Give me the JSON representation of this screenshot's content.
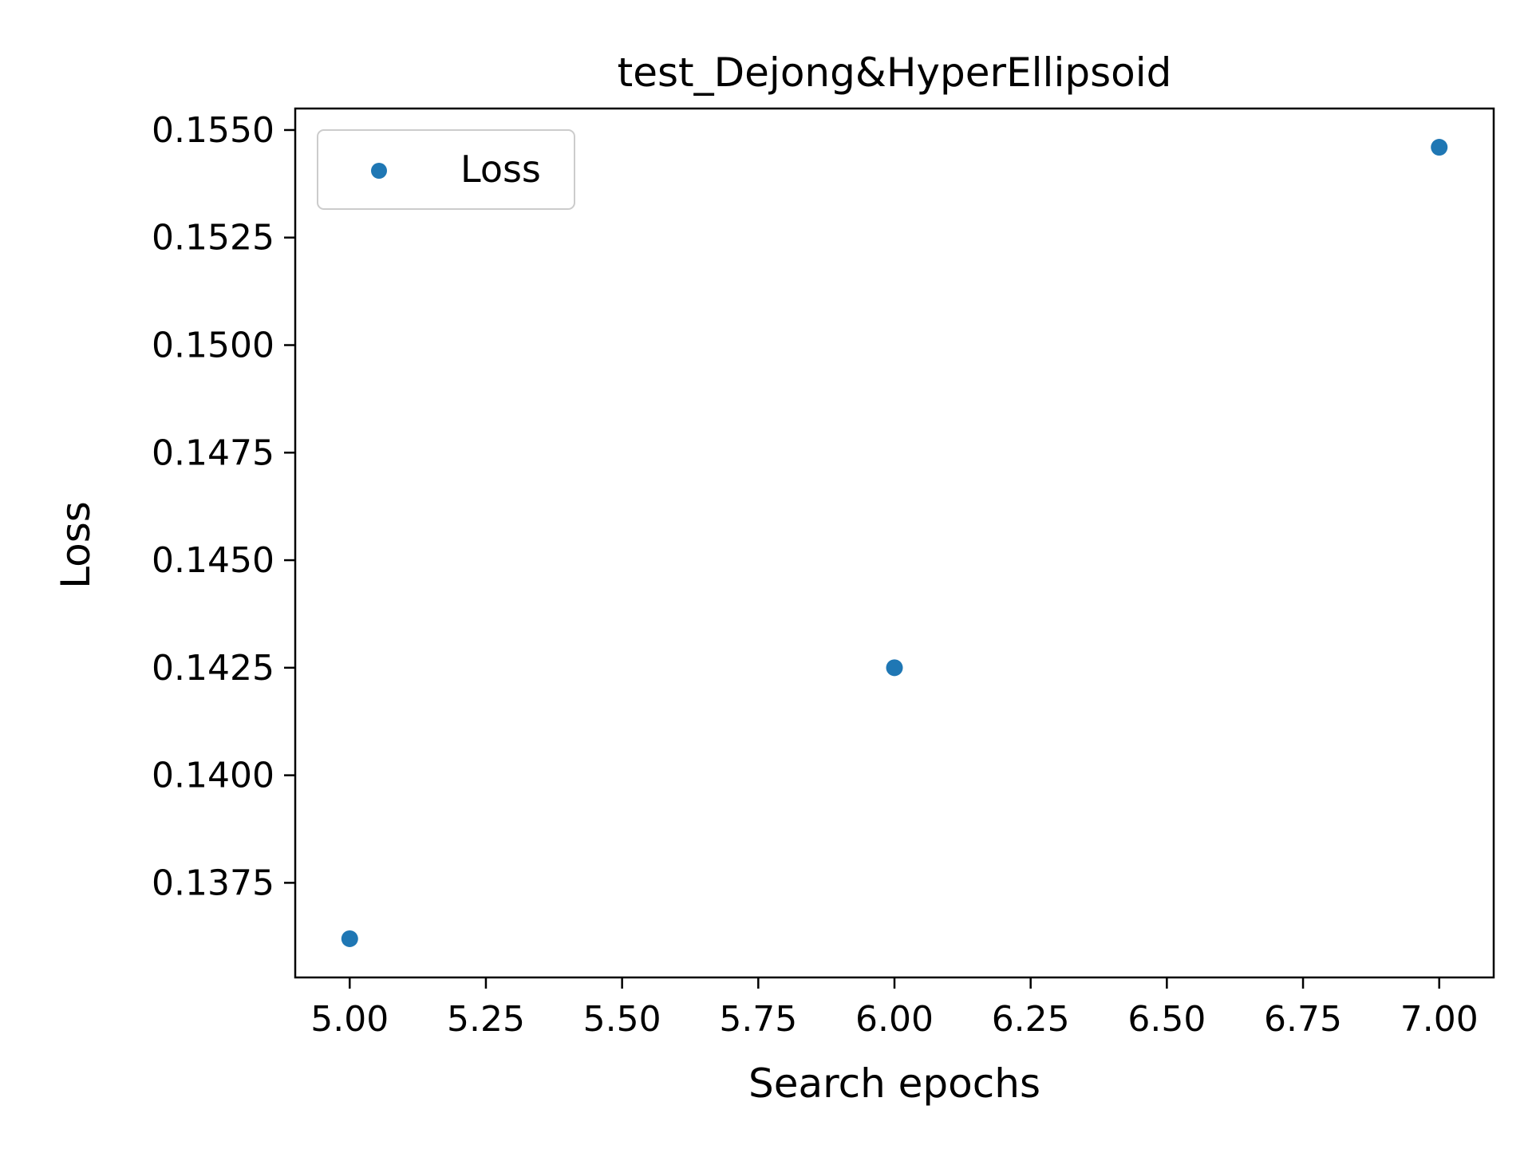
{
  "chart_data": {
    "type": "scatter",
    "title": "test_Dejong&HyperEllipsoid",
    "xlabel": "Search epochs",
    "ylabel": "Loss",
    "xlim": [
      4.9,
      7.1
    ],
    "ylim": [
      0.1353,
      0.1555
    ],
    "x_ticks": [
      5.0,
      5.25,
      5.5,
      5.75,
      6.0,
      6.25,
      6.5,
      6.75,
      7.0
    ],
    "x_tick_labels": [
      "5.00",
      "5.25",
      "5.50",
      "5.75",
      "6.00",
      "6.25",
      "6.50",
      "6.75",
      "7.00"
    ],
    "y_ticks": [
      0.1375,
      0.14,
      0.1425,
      0.145,
      0.1475,
      0.15,
      0.1525,
      0.155
    ],
    "y_tick_labels": [
      "0.1375",
      "0.1400",
      "0.1425",
      "0.1450",
      "0.1475",
      "0.1500",
      "0.1525",
      "0.1550"
    ],
    "grid": false,
    "legend_position": "top-left",
    "series": [
      {
        "name": "Loss",
        "color": "#1f77b4",
        "x": [
          5.0,
          6.0,
          7.0
        ],
        "y": [
          0.1362,
          0.1425,
          0.1546
        ]
      }
    ]
  }
}
